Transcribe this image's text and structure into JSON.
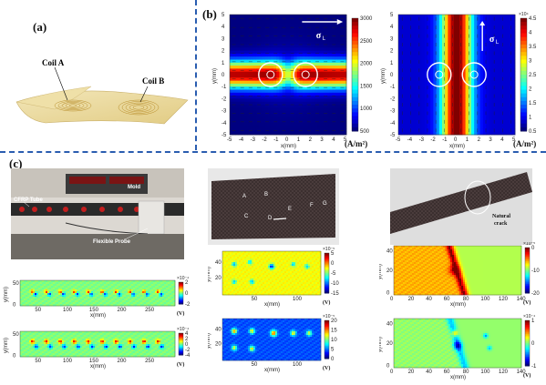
{
  "panels": {
    "a": {
      "label": "(a)",
      "coil_a": "Coil A",
      "coil_b": "Coil B"
    },
    "b": {
      "label": "(b)",
      "sigma": "σ",
      "sigma_sub": "L",
      "unit": "(A/m²)",
      "left_cbar_ticks": [
        "3000",
        "2500",
        "2000",
        "1500",
        "1000",
        "500"
      ],
      "right_cbar_ticks": [
        "4.5",
        "4",
        "3.5",
        "3",
        "2.5",
        "2",
        "1.5",
        "1",
        "0.5"
      ],
      "right_cbar_exp": "×10⁴",
      "x_ticks": [
        "-5",
        "-4",
        "-3",
        "-2",
        "-1",
        "0",
        "1",
        "2",
        "3",
        "4",
        "5"
      ],
      "y_ticks": [
        "5",
        "4",
        "3",
        "2",
        "1",
        "0",
        "-1",
        "-2",
        "-3",
        "-4",
        "-5"
      ],
      "xlabel": "x(mm)",
      "ylabel": "y(mm)"
    },
    "c": {
      "label": "(c)",
      "cfrp_tube": "CFRP Tube",
      "mold": "Mold",
      "flexible_probe": "Flexible Probe",
      "defect_letters": [
        "A",
        "B",
        "C",
        "D",
        "E",
        "F",
        "G"
      ],
      "natural_crack": "Natural crack",
      "xlabel": "x(mm)",
      "ylabel": "y(mm)",
      "unit_v": "(V)",
      "tube_x_ticks": [
        "50",
        "100",
        "150",
        "200",
        "250"
      ],
      "tube_y_ticks": [
        "50",
        "0"
      ],
      "tube1_cbar": [
        "2",
        "0",
        "-2"
      ],
      "tube1_exp": "×10⁻⁴",
      "tube2_cbar": [
        "4",
        "2",
        "0",
        "-2",
        "-4"
      ],
      "tube2_exp": "×10⁻⁴",
      "plate_x_ticks": [
        "50",
        "100"
      ],
      "plate_y_ticks": [
        "40",
        "20"
      ],
      "plate1_cbar": [
        "5",
        "0",
        "-5",
        "-10",
        "-15"
      ],
      "plate1_exp": "×10⁻⁵",
      "plate2_cbar": [
        "20",
        "15",
        "10",
        "5",
        "0"
      ],
      "plate2_exp": "×10⁻⁵",
      "crack_x_ticks": [
        "0",
        "20",
        "40",
        "60",
        "80",
        "100",
        "120",
        "140"
      ],
      "crack_y_ticks": [
        "40",
        "20",
        "0"
      ],
      "crack1_cbar": [
        "0",
        "-10",
        "-20"
      ],
      "crack1_exp": "×10⁻⁵",
      "crack2_cbar": [
        "1",
        "0",
        "-1"
      ],
      "crack2_exp": "×10⁻⁴"
    }
  }
}
